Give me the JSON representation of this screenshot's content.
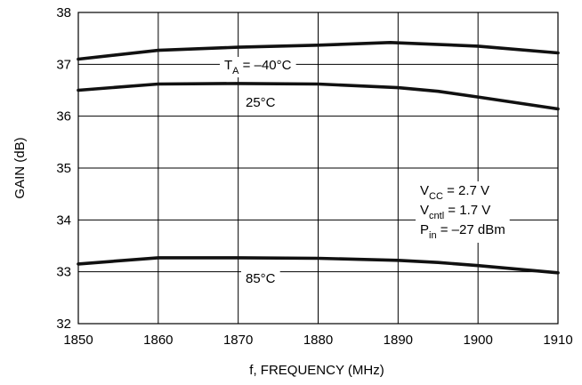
{
  "chart_data": {
    "type": "line",
    "xlabel": "f, FREQUENCY (MHz)",
    "ylabel": "GAIN (dB)",
    "xlim": [
      1850,
      1910
    ],
    "ylim": [
      32,
      38
    ],
    "x_ticks": [
      "1850",
      "1860",
      "1870",
      "1880",
      "1890",
      "1900",
      "1910"
    ],
    "y_ticks": [
      "32",
      "33",
      "34",
      "35",
      "36",
      "37",
      "38"
    ],
    "grid": true,
    "series": [
      {
        "label_prefix": "T",
        "label_sub": "A",
        "label_value": " = –40°C",
        "x": [
          1850,
          1860,
          1870,
          1880,
          1889,
          1900,
          1910
        ],
        "y": [
          37.1,
          37.27,
          37.33,
          37.37,
          37.42,
          37.35,
          37.22
        ]
      },
      {
        "label": "25°C",
        "x": [
          1850,
          1860,
          1870,
          1880,
          1890,
          1895,
          1900,
          1910
        ],
        "y": [
          36.5,
          36.62,
          36.63,
          36.62,
          36.55,
          36.48,
          36.37,
          36.14
        ]
      },
      {
        "label": "85°C",
        "x": [
          1850,
          1860,
          1870,
          1880,
          1890,
          1895,
          1900,
          1910
        ],
        "y": [
          33.15,
          33.27,
          33.27,
          33.26,
          33.22,
          33.18,
          33.12,
          32.98
        ]
      }
    ],
    "conditions": [
      {
        "prefix": "V",
        "sub": "CC",
        "suffix": " = 2.7 V"
      },
      {
        "prefix": "V",
        "sub": "cntl",
        "suffix": " = 1.7 V"
      },
      {
        "prefix": "P",
        "sub": "in",
        "suffix": " = –27 dBm"
      }
    ]
  }
}
